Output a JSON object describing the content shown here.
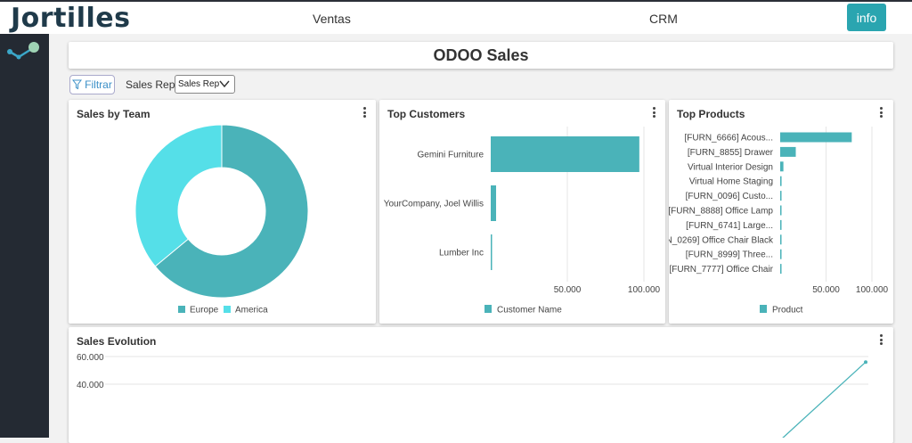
{
  "header": {
    "logo": "Jortilles",
    "nav": [
      "Ventas",
      "CRM"
    ],
    "info_label": "info"
  },
  "page": {
    "title": "ODOO Sales",
    "filter_label": "Filtrar",
    "sales_rep_label": "Sales Rep:",
    "sales_rep_value": "Sales Rep"
  },
  "colors": {
    "accent": "#2aa5b0",
    "teal": "#4ab3b9",
    "cyan": "#55dfe8",
    "sidebar": "#242a33"
  },
  "cards": {
    "team": {
      "title": "Sales by Team"
    },
    "customers": {
      "title": "Top Customers"
    },
    "products": {
      "title": "Top Products"
    },
    "evolution": {
      "title": "Sales Evolution"
    }
  },
  "chart_data": [
    {
      "type": "pie",
      "title": "Sales by Team",
      "categories": [
        "Europe",
        "America"
      ],
      "values": [
        64,
        36
      ],
      "colors": [
        "#4ab3b9",
        "#55dfe8"
      ],
      "legend": "bottom"
    },
    {
      "type": "bar",
      "orientation": "horizontal",
      "title": "Top Customers",
      "categories": [
        "Gemini Furniture",
        "YourCompany, Joel Willis",
        "Lumber Inc"
      ],
      "values": [
        97000,
        3500,
        800
      ],
      "xticks": [
        "50.000",
        "100.000"
      ],
      "xlim": [
        0,
        100000
      ],
      "legend_label": "Customer Name",
      "grid": true
    },
    {
      "type": "bar",
      "orientation": "horizontal",
      "title": "Top Products",
      "categories": [
        "[FURN_6666] Acous...",
        "[FURN_8855] Drawer",
        "Virtual Interior Design",
        "Virtual Home Staging",
        "[FURN_0096] Custo...",
        "[FURN_8888] Office Lamp",
        "[FURN_6741] Large...",
        "N_0269] Office Chair Black",
        "[FURN_8999] Three...",
        "[FURN_7777] Office Chair"
      ],
      "values": [
        78000,
        17000,
        3500,
        1500,
        900,
        700,
        600,
        500,
        400,
        300
      ],
      "xticks": [
        "50.000",
        "100.000"
      ],
      "xlim": [
        0,
        100000
      ],
      "legend_label": "Product",
      "grid": true
    },
    {
      "type": "line",
      "title": "Sales Evolution",
      "yticks": [
        "60.000",
        "40.000"
      ],
      "y": [
        0,
        56000
      ],
      "ylim": [
        0,
        60000
      ],
      "grid": true
    }
  ]
}
